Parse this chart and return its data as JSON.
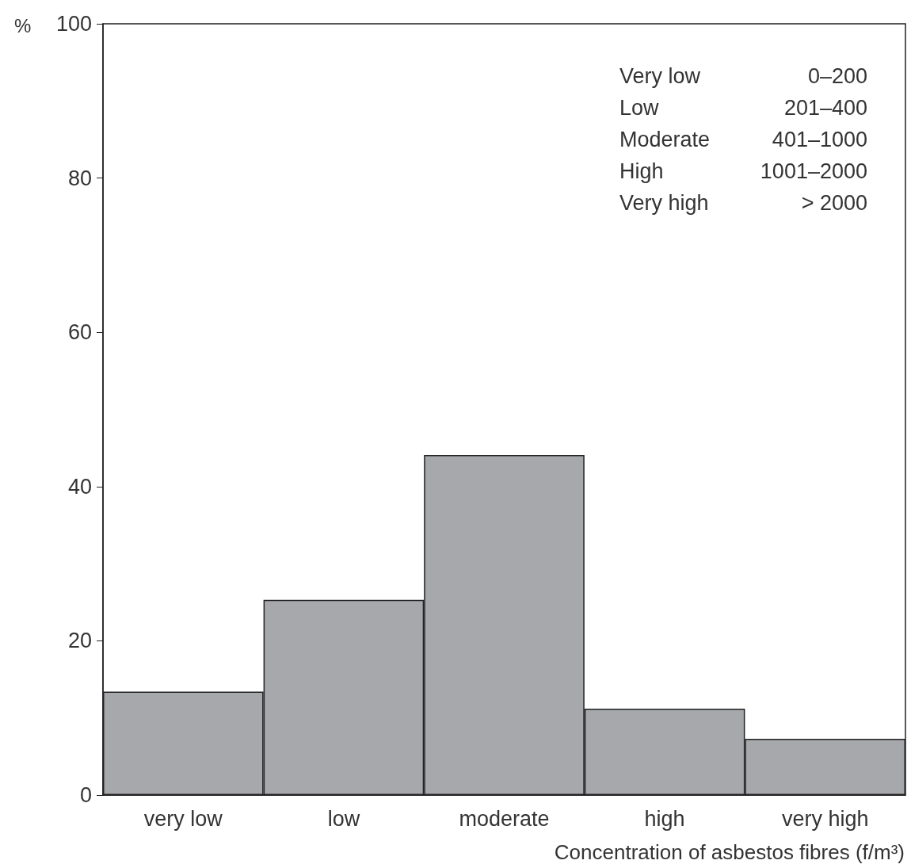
{
  "chart_data": {
    "type": "bar",
    "ylabel": "%",
    "xlabel": "Concentration of asbestos fibres (f/m³)",
    "categories": [
      "very low",
      "low",
      "moderate",
      "high",
      "very high"
    ],
    "values": [
      13.4,
      25.3,
      44.1,
      11.2,
      7.3
    ],
    "color": "#a7a8ac",
    "ylim": [
      0,
      100
    ],
    "yticks": [
      0,
      20,
      40,
      60,
      80,
      100
    ],
    "grid": false,
    "annotations": [
      "Very low",
      "0–200",
      "Low",
      "201–400",
      "Moderate",
      "401–1000",
      "High",
      "1001–2000",
      "Very high",
      "> 2000"
    ]
  }
}
